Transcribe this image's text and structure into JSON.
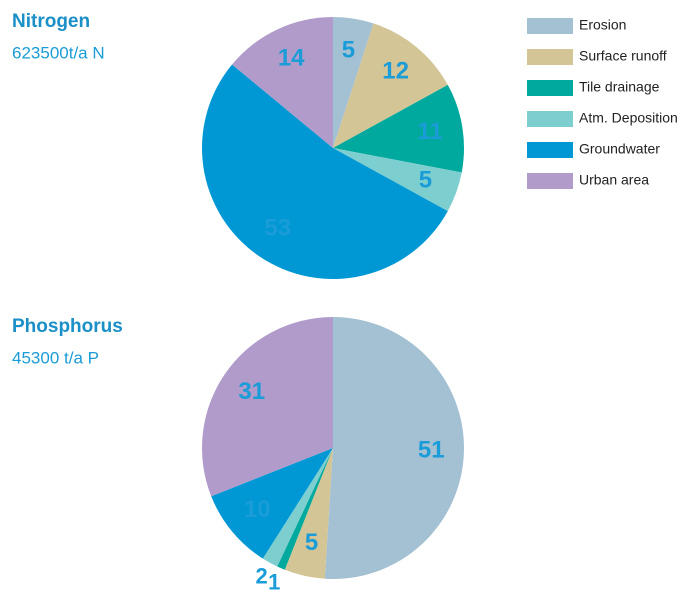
{
  "chart_data": [
    {
      "type": "pie",
      "title": "Nitrogen",
      "subtitle": "623500t/a N",
      "categories": [
        "Erosion",
        "Surface runoff",
        "Tile drainage",
        "Atm. Deposition",
        "Groundwater",
        "Urban area"
      ],
      "values": [
        5,
        12,
        11,
        5,
        53,
        14
      ],
      "colors": [
        "#a3c1d3",
        "#d4c597",
        "#00a99d",
        "#7dcfcf",
        "#0098d4",
        "#b09bca"
      ],
      "legend": "top-right"
    },
    {
      "type": "pie",
      "title": "Phosphorus",
      "subtitle": "45300 t/a P",
      "categories": [
        "Erosion",
        "Surface runoff",
        "Tile drainage",
        "Atm. Deposition",
        "Groundwater",
        "Urban area"
      ],
      "values": [
        51,
        5,
        1,
        2,
        10,
        31
      ],
      "colors": [
        "#a3c1d3",
        "#d4c597",
        "#00a99d",
        "#7dcfcf",
        "#0098d4",
        "#b09bca"
      ]
    }
  ]
}
